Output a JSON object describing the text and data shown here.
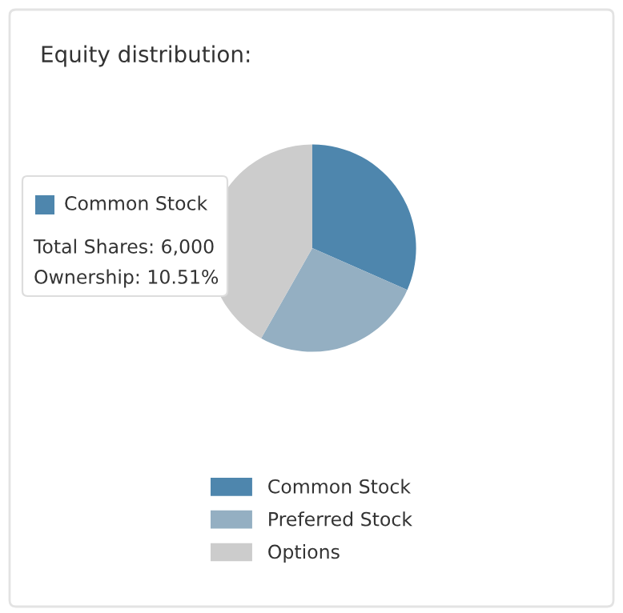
{
  "chart_data": {
    "type": "pie",
    "title": "Equity distribution:",
    "categories": [
      "Common Stock",
      "Preferred Stock",
      "Options"
    ],
    "values": [
      31.6,
      26.6,
      41.8
    ],
    "colors": [
      "#4e86ad",
      "#94afc2",
      "#cccccc"
    ],
    "legend": "bottom",
    "annotations": [
      "Common Stock",
      "Total Shares: 6,000",
      "Ownership: 10.51%"
    ]
  }
}
